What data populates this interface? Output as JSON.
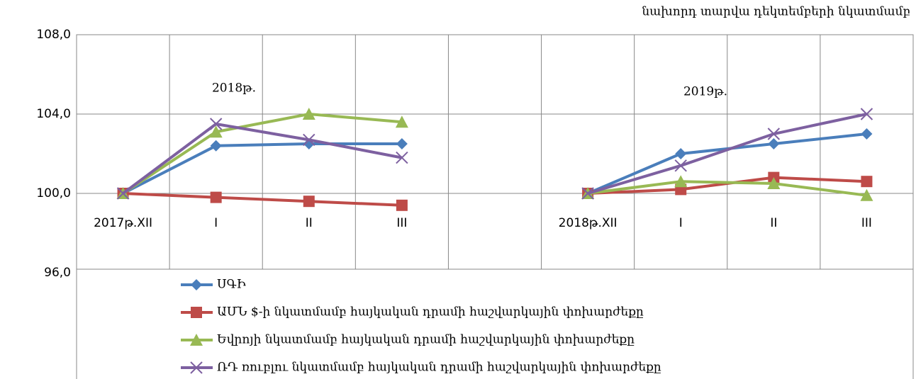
{
  "chart_data": {
    "type": "line",
    "note": "նախորդ տարվա դեկտեմբերի նկատմամբ",
    "annotations": [
      "2018թ.",
      "2019թ."
    ],
    "categories": [
      "2017թ.XII",
      "I",
      "II",
      "III",
      null,
      "2018թ.XII",
      "I",
      "II",
      "III"
    ],
    "series": [
      {
        "name": "ՍԳԻ",
        "color": "#4a7ebb",
        "marker": "diamond",
        "values": [
          100,
          102.4,
          102.5,
          102.5,
          null,
          100,
          102.0,
          102.5,
          103.0
        ]
      },
      {
        "name": "ԱՄՆ $-ի նկատմամբ հայկական դրամի հաշվարկային փոխարժեքը",
        "color": "#be4b48",
        "marker": "square",
        "values": [
          100,
          99.8,
          99.6,
          99.4,
          null,
          100,
          100.2,
          100.8,
          100.6
        ]
      },
      {
        "name": "Եվրոյի նկատմամբ հայկական դրամի հաշվարկային փոխարժեքը",
        "color": "#98b954",
        "marker": "triangle",
        "values": [
          100,
          103.1,
          104.0,
          103.6,
          null,
          100,
          100.6,
          100.5,
          99.9
        ]
      },
      {
        "name": "ՌԴ ռուբլու նկատմամբ հայկական դրամի հաշվարկային փոխարժեքը",
        "color": "#7d60a0",
        "marker": "cross",
        "values": [
          100,
          103.5,
          102.7,
          101.8,
          null,
          100,
          101.4,
          103.0,
          104.0
        ]
      }
    ],
    "ylim": [
      96,
      108
    ],
    "yticks": [
      {
        "value": 96,
        "label": "96,0"
      },
      {
        "value": 100,
        "label": "100,0"
      },
      {
        "value": 104,
        "label": "104,0"
      },
      {
        "value": 108,
        "label": "108,0"
      }
    ],
    "grid": true
  }
}
